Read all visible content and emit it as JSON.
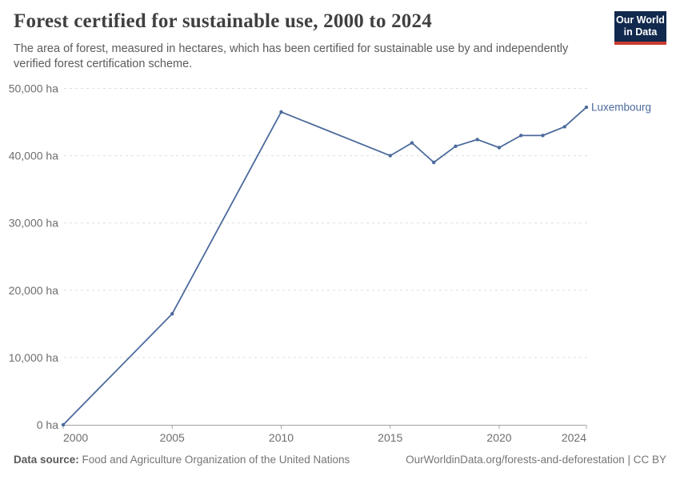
{
  "header": {
    "title": "Forest certified for sustainable use, 2000 to 2024",
    "subtitle": "The area of forest, measured in hectares, which has been certified for sustainable use by and independently verified forest certification scheme.",
    "logo": {
      "line1": "Our World",
      "line2": "in Data"
    }
  },
  "chart_data": {
    "type": "line",
    "title": "Forest certified for sustainable use, 2000 to 2024",
    "unit": "ha",
    "xlabel": "",
    "ylabel": "",
    "xlim": [
      2000,
      2024
    ],
    "ylim": [
      0,
      50000
    ],
    "grid": "horizontal-dashed",
    "legend_position": "end-of-line-label",
    "yticks": [
      {
        "value": 0,
        "label": "0 ha"
      },
      {
        "value": 10000,
        "label": "10,000 ha"
      },
      {
        "value": 20000,
        "label": "20,000 ha"
      },
      {
        "value": 30000,
        "label": "30,000 ha"
      },
      {
        "value": 40000,
        "label": "40,000 ha"
      },
      {
        "value": 50000,
        "label": "50,000 ha"
      }
    ],
    "xticks": [
      {
        "value": 2000,
        "label": "2000"
      },
      {
        "value": 2005,
        "label": "2005"
      },
      {
        "value": 2010,
        "label": "2010"
      },
      {
        "value": 2015,
        "label": "2015"
      },
      {
        "value": 2020,
        "label": "2020"
      },
      {
        "value": 2024,
        "label": "2024"
      }
    ],
    "series": [
      {
        "name": "Luxembourg",
        "color": "#4C6A9C",
        "points": [
          {
            "year": 2000,
            "value": 0
          },
          {
            "year": 2005,
            "value": 16500
          },
          {
            "year": 2010,
            "value": 46500
          },
          {
            "year": 2015,
            "value": 40000
          },
          {
            "year": 2016,
            "value": 41900
          },
          {
            "year": 2017,
            "value": 39000
          },
          {
            "year": 2018,
            "value": 41400
          },
          {
            "year": 2019,
            "value": 42400
          },
          {
            "year": 2020,
            "value": 41200
          },
          {
            "year": 2021,
            "value": 43000
          },
          {
            "year": 2022,
            "value": 43000
          },
          {
            "year": 2023,
            "value": 44300
          },
          {
            "year": 2024,
            "value": 47200
          }
        ]
      }
    ]
  },
  "footer": {
    "datasource_label": "Data source:",
    "datasource": "Food and Agriculture Organization of the United Nations",
    "credit": "OurWorldinData.org/forests-and-deforestation | CC BY"
  },
  "colors": {
    "line": "#4C6A9C",
    "grid": "#dedede",
    "axis": "#a3a3a3",
    "tick_text": "#6e6e6e",
    "title_text": "#413f3f",
    "subtitle_text": "#5b5b5b",
    "logo_bg": "#12294e",
    "logo_red": "#ca3c31"
  }
}
